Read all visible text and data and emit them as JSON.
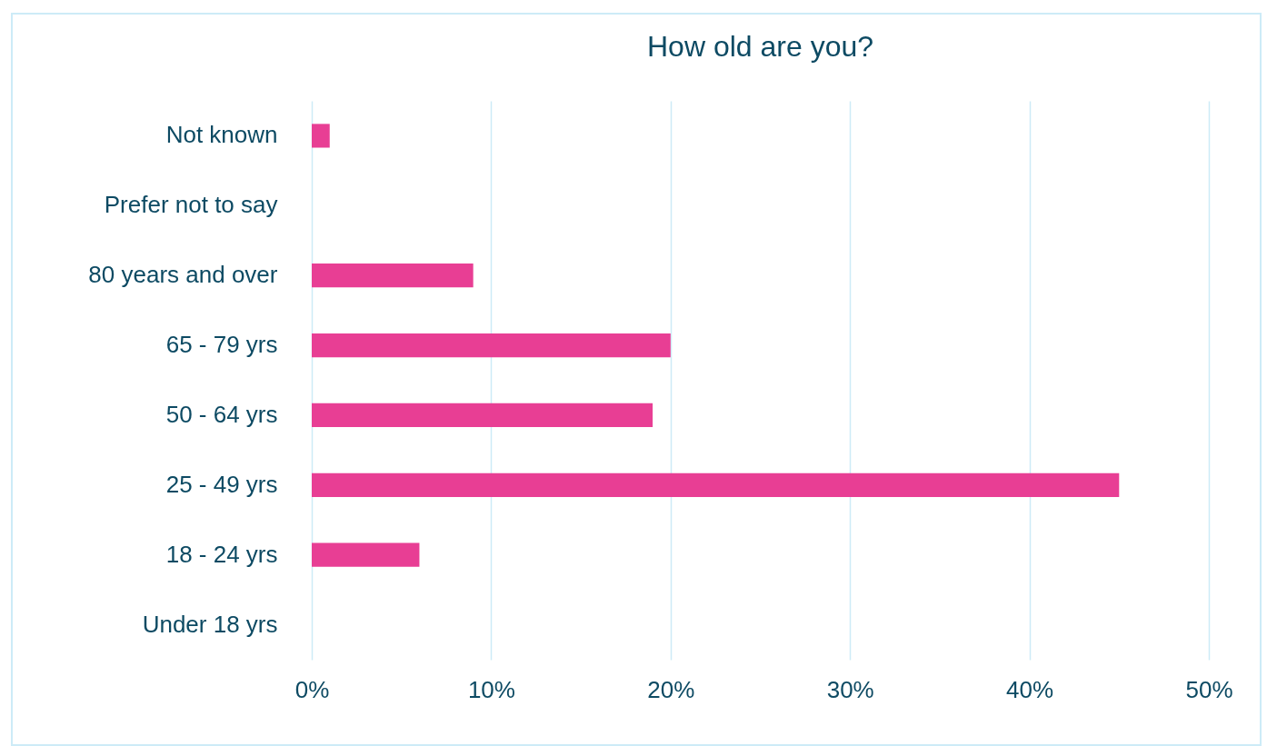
{
  "chart_data": {
    "type": "bar",
    "orientation": "horizontal",
    "title": "How old are you?",
    "categories": [
      "Not known",
      "Prefer not to say",
      "80 years and over",
      "65 - 79 yrs",
      "50 - 64 yrs",
      "25 - 49 yrs",
      "18 - 24 yrs",
      "Under 18 yrs"
    ],
    "values": [
      1,
      0,
      9,
      20,
      19,
      45,
      6,
      0
    ],
    "color": "#e83e94",
    "xlim": [
      0,
      50
    ],
    "xticks": [
      {
        "value": 0,
        "label": "0%"
      },
      {
        "value": 10,
        "label": "10%"
      },
      {
        "value": 20,
        "label": "20%"
      },
      {
        "value": 30,
        "label": "30%"
      },
      {
        "value": 40,
        "label": "40%"
      },
      {
        "value": 50,
        "label": "50%"
      }
    ],
    "grid": "x"
  }
}
